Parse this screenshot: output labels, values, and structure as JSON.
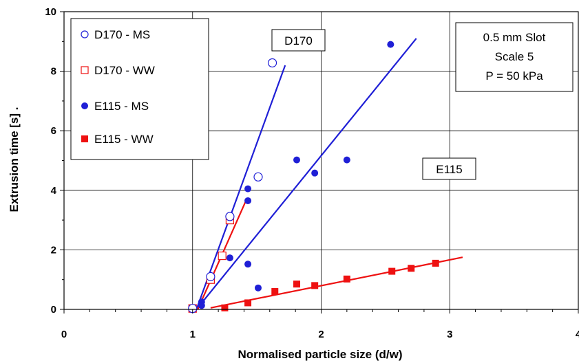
{
  "chart_data": {
    "type": "scatter",
    "title": "",
    "xlabel": "Normalised particle size (d/w)",
    "ylabel": "Extrusion time [s] .",
    "xlim": [
      0,
      4
    ],
    "ylim": [
      0,
      10
    ],
    "xticks": [
      "0",
      "1",
      "2",
      "3",
      "4"
    ],
    "yticks": [
      "0",
      "2",
      "4",
      "6",
      "8",
      "10"
    ],
    "grid": true,
    "legend_position": "top-left",
    "colors": {
      "blue": "#1f1fd6",
      "red": "#ee1111"
    },
    "series": [
      {
        "name": "D170 - MS",
        "marker": "open-circle",
        "color": "#1f1fd6",
        "points": [
          [
            1.0,
            0.03
          ],
          [
            1.14,
            1.1
          ],
          [
            1.29,
            3.12
          ],
          [
            1.51,
            4.45
          ],
          [
            1.62,
            8.28
          ]
        ]
      },
      {
        "name": "D170 - WW",
        "marker": "open-square",
        "color": "#ee1111",
        "points": [
          [
            1.0,
            0.03
          ],
          [
            1.14,
            1.0
          ],
          [
            1.23,
            1.8
          ],
          [
            1.29,
            3.0
          ]
        ]
      },
      {
        "name": "E115 - MS",
        "marker": "filled-circle",
        "color": "#1f1fd6",
        "points": [
          [
            1.07,
            0.25
          ],
          [
            1.07,
            0.13
          ],
          [
            1.29,
            1.73
          ],
          [
            1.43,
            4.05
          ],
          [
            1.43,
            3.65
          ],
          [
            1.43,
            1.52
          ],
          [
            1.51,
            0.72
          ],
          [
            1.81,
            5.02
          ],
          [
            1.95,
            4.58
          ],
          [
            2.2,
            5.02
          ],
          [
            2.54,
            8.9
          ]
        ]
      },
      {
        "name": "E115 - WW",
        "marker": "filled-square",
        "color": "#ee1111",
        "points": [
          [
            1.25,
            0.05
          ],
          [
            1.43,
            0.22
          ],
          [
            1.64,
            0.6
          ],
          [
            1.81,
            0.85
          ],
          [
            1.95,
            0.8
          ],
          [
            2.2,
            1.02
          ],
          [
            2.55,
            1.28
          ],
          [
            2.7,
            1.38
          ],
          [
            2.89,
            1.55
          ]
        ]
      }
    ],
    "trend_lines": [
      {
        "color": "#1f1fd6",
        "from": [
          1.03,
          0.0
        ],
        "to": [
          1.72,
          8.2
        ]
      },
      {
        "color": "#1f1fd6",
        "from": [
          1.03,
          0.0
        ],
        "to": [
          2.74,
          9.1
        ]
      },
      {
        "color": "#ee1111",
        "from": [
          1.04,
          0.0
        ],
        "to": [
          1.42,
          3.7
        ]
      },
      {
        "color": "#ee1111",
        "from": [
          1.14,
          0.05
        ],
        "to": [
          3.1,
          1.75
        ]
      }
    ],
    "annotations": {
      "d170_label": "D170",
      "e115_label": "E115",
      "conditions": [
        "0.5 mm Slot",
        "Scale 5",
        "P = 50 kPa"
      ]
    }
  }
}
